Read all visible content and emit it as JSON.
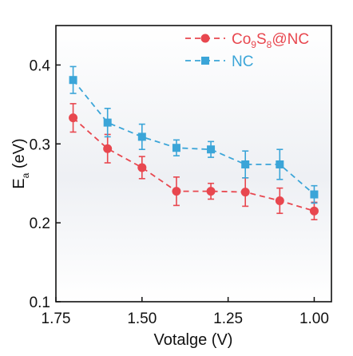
{
  "chart_data": {
    "type": "line",
    "xlabel": "Votalge (V)",
    "ylabel": {
      "main": "E",
      "sub": "a",
      "rest": " (eV)"
    },
    "xlim": [
      1.75,
      0.95
    ],
    "ylim": [
      0.1,
      0.45
    ],
    "x_ticks": [
      "1.75",
      "1.50",
      "1.25",
      "1.00"
    ],
    "y_ticks": [
      "0.1",
      "0.2",
      "0.3",
      "0.4"
    ],
    "x_tick_values": [
      1.75,
      1.5,
      1.25,
      1.0
    ],
    "y_tick_values": [
      0.1,
      0.2,
      0.3,
      0.4
    ],
    "x": [
      1.7,
      1.6,
      1.5,
      1.4,
      1.3,
      1.2,
      1.1,
      1.0
    ],
    "legend_position": "top-right",
    "grid": false,
    "background": "light gray vertical gradient",
    "series": [
      {
        "name": {
          "parts": [
            [
              "Co",
              ""
            ],
            [
              "9",
              "sub"
            ],
            [
              "S",
              ""
            ],
            [
              "8",
              "sub"
            ],
            [
              "@NC",
              ""
            ]
          ]
        },
        "color": "#e8474f",
        "marker": "circle",
        "line_style": "dashed",
        "values": [
          0.333,
          0.294,
          0.27,
          0.24,
          0.24,
          0.239,
          0.228,
          0.215
        ],
        "errors": [
          0.018,
          0.018,
          0.014,
          0.018,
          0.01,
          0.018,
          0.016,
          0.011
        ]
      },
      {
        "name": {
          "parts": [
            [
              "NC",
              ""
            ]
          ]
        },
        "color": "#3ba5d8",
        "marker": "square",
        "line_style": "dashed",
        "values": [
          0.381,
          0.327,
          0.309,
          0.295,
          0.293,
          0.274,
          0.274,
          0.236
        ],
        "errors": [
          0.017,
          0.018,
          0.016,
          0.01,
          0.01,
          0.017,
          0.019,
          0.011
        ]
      }
    ]
  }
}
